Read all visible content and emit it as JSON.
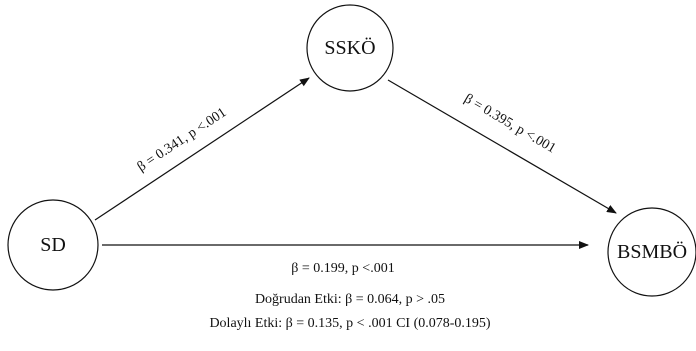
{
  "nodes": {
    "sd": "SD",
    "sskö": "SSKÖ",
    "bsmbö": "BSMBÖ"
  },
  "edges": {
    "sd_to_sskö": "β = 0.341, p <.001",
    "sskö_to_bsmbö": "β = 0.395, p <.001",
    "sd_to_bsmbö": "β = 0.199, p <.001"
  },
  "footer": {
    "direct": "Doğrudan Etki: β = 0.064, p > .05",
    "indirect": "Dolaylı Etki: β = 0.135, p < .001  CI (0.078-0.195)"
  },
  "colors": {
    "stroke": "#111111",
    "background": "#ffffff"
  }
}
